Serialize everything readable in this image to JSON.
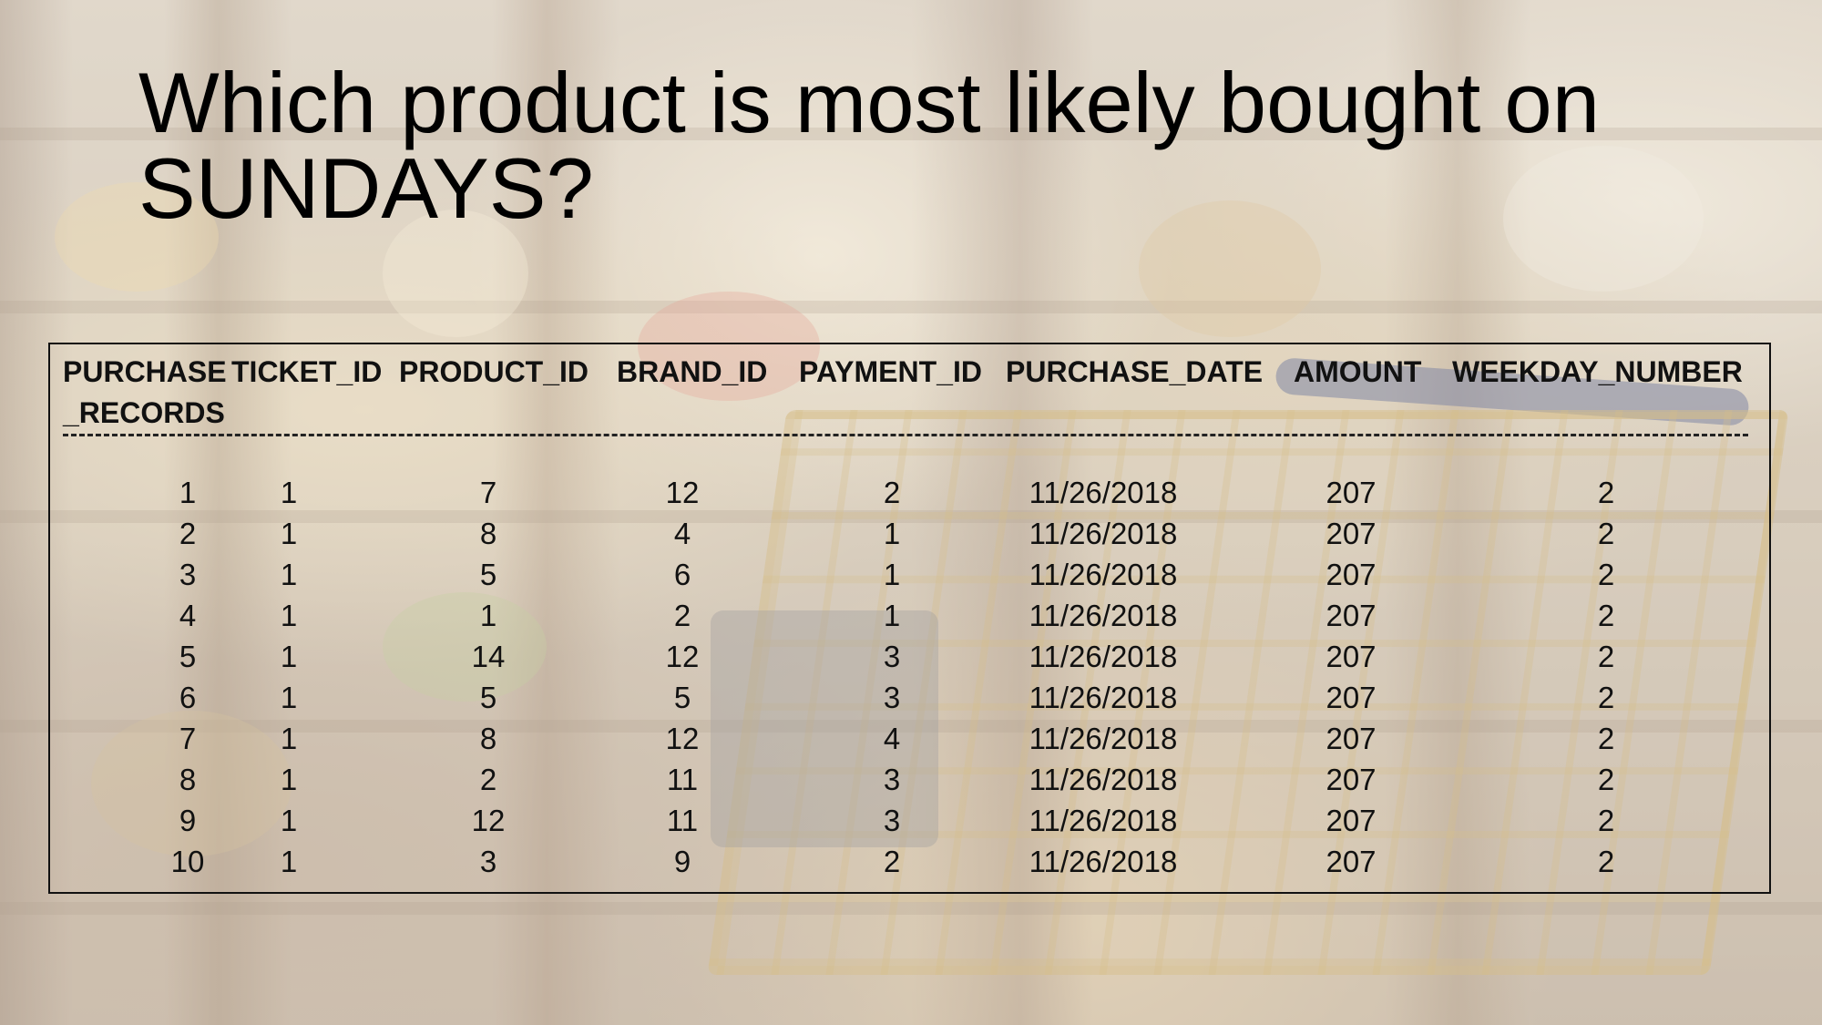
{
  "slide": {
    "title_line1": "Which product is most likely bought on",
    "title_line2": "SUNDAYS?"
  },
  "table": {
    "headers": {
      "purchase_records_line1": "PURCHASE",
      "purchase_records_line2": "_RECORDS",
      "ticket_id": "TICKET_ID",
      "product_id": "PRODUCT_ID",
      "brand_id": "BRAND_ID",
      "payment_id": "PAYMENT_ID",
      "purchase_date": "PURCHASE_DATE",
      "amount": "AMOUNT",
      "weekday_number": "WEEKDAY_NUMBER"
    },
    "rows": [
      {
        "purchase_records": "1",
        "ticket_id": "1",
        "product_id": "7",
        "brand_id": "12",
        "payment_id": "2",
        "purchase_date": "11/26/2018",
        "amount": "207",
        "weekday_number": "2"
      },
      {
        "purchase_records": "2",
        "ticket_id": "1",
        "product_id": "8",
        "brand_id": "4",
        "payment_id": "1",
        "purchase_date": "11/26/2018",
        "amount": "207",
        "weekday_number": "2"
      },
      {
        "purchase_records": "3",
        "ticket_id": "1",
        "product_id": "5",
        "brand_id": "6",
        "payment_id": "1",
        "purchase_date": "11/26/2018",
        "amount": "207",
        "weekday_number": "2"
      },
      {
        "purchase_records": "4",
        "ticket_id": "1",
        "product_id": "1",
        "brand_id": "2",
        "payment_id": "1",
        "purchase_date": "11/26/2018",
        "amount": "207",
        "weekday_number": "2"
      },
      {
        "purchase_records": "5",
        "ticket_id": "1",
        "product_id": "14",
        "brand_id": "12",
        "payment_id": "3",
        "purchase_date": "11/26/2018",
        "amount": "207",
        "weekday_number": "2"
      },
      {
        "purchase_records": "6",
        "ticket_id": "1",
        "product_id": "5",
        "brand_id": "5",
        "payment_id": "3",
        "purchase_date": "11/26/2018",
        "amount": "207",
        "weekday_number": "2"
      },
      {
        "purchase_records": "7",
        "ticket_id": "1",
        "product_id": "8",
        "brand_id": "12",
        "payment_id": "4",
        "purchase_date": "11/26/2018",
        "amount": "207",
        "weekday_number": "2"
      },
      {
        "purchase_records": "8",
        "ticket_id": "1",
        "product_id": "2",
        "brand_id": "11",
        "payment_id": "3",
        "purchase_date": "11/26/2018",
        "amount": "207",
        "weekday_number": "2"
      },
      {
        "purchase_records": "9",
        "ticket_id": "1",
        "product_id": "12",
        "brand_id": "11",
        "payment_id": "3",
        "purchase_date": "11/26/2018",
        "amount": "207",
        "weekday_number": "2"
      },
      {
        "purchase_records": "10",
        "ticket_id": "1",
        "product_id": "3",
        "brand_id": "9",
        "payment_id": "2",
        "purchase_date": "11/26/2018",
        "amount": "207",
        "weekday_number": "2"
      }
    ]
  }
}
